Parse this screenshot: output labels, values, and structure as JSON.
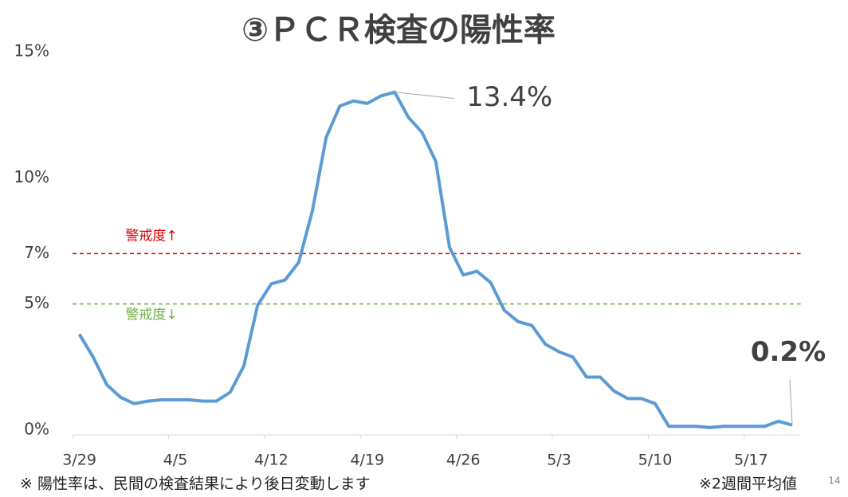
{
  "chart_data": {
    "type": "line",
    "title": "③ＰＣＲ検査の陽性率",
    "categories": [
      "3/29",
      null,
      null,
      null,
      null,
      null,
      null,
      "4/5",
      null,
      null,
      null,
      null,
      null,
      null,
      "4/12",
      null,
      null,
      null,
      null,
      null,
      null,
      "4/19",
      null,
      null,
      null,
      null,
      null,
      null,
      "4/26",
      null,
      null,
      null,
      null,
      null,
      null,
      "5/3",
      null,
      null,
      null,
      null,
      null,
      null,
      "5/10",
      null,
      null,
      null,
      null,
      null,
      null,
      "5/17",
      null,
      null,
      null
    ],
    "series": [
      {
        "color": "#5b9bd5",
        "values": [
          3.8,
          2.9,
          1.8,
          1.3,
          1.05,
          1.15,
          1.2,
          1.2,
          1.2,
          1.15,
          1.15,
          1.5,
          2.55,
          4.95,
          5.8,
          5.95,
          6.65,
          8.7,
          11.6,
          12.85,
          13.05,
          12.95,
          13.25,
          13.4,
          12.4,
          11.8,
          10.65,
          7.25,
          6.15,
          6.3,
          5.85,
          4.75,
          4.3,
          4.15,
          3.4,
          3.1,
          2.9,
          2.1,
          2.1,
          1.55,
          1.25,
          1.25,
          1.05,
          0.15,
          0.15,
          0.15,
          0.1,
          0.15,
          0.15,
          0.15,
          0.15,
          0.35,
          0.2
        ],
        "value_labels": [
          null,
          null,
          null,
          null,
          null,
          null,
          null,
          null,
          null,
          null,
          null,
          null,
          null,
          null,
          null,
          null,
          null,
          null,
          null,
          null,
          null,
          null,
          null,
          "13.4%",
          null,
          null,
          null,
          null,
          null,
          null,
          null,
          null,
          null,
          null,
          null,
          null,
          null,
          null,
          null,
          null,
          null,
          null,
          null,
          null,
          null,
          null,
          null,
          null,
          null,
          null,
          null,
          null,
          "0.2%"
        ]
      }
    ],
    "ylim": [
      0,
      15
    ],
    "yticks": [
      {
        "value": 0,
        "label": "0%"
      },
      {
        "value": 5,
        "label": "5%"
      },
      {
        "value": 7,
        "label": "7%"
      },
      {
        "value": 10,
        "label": "10%"
      },
      {
        "value": 15,
        "label": "15%"
      }
    ],
    "thresholds": [
      {
        "value": 7,
        "label": "警戒度↑",
        "color": "#e00000"
      },
      {
        "value": 5,
        "label": "警戒度↓",
        "color": "#70ad47"
      }
    ],
    "footnotes": [
      "※ 陽性率は、民間の検査結果により後日変動します",
      "※2週間平均値"
    ],
    "page_number": "14"
  }
}
